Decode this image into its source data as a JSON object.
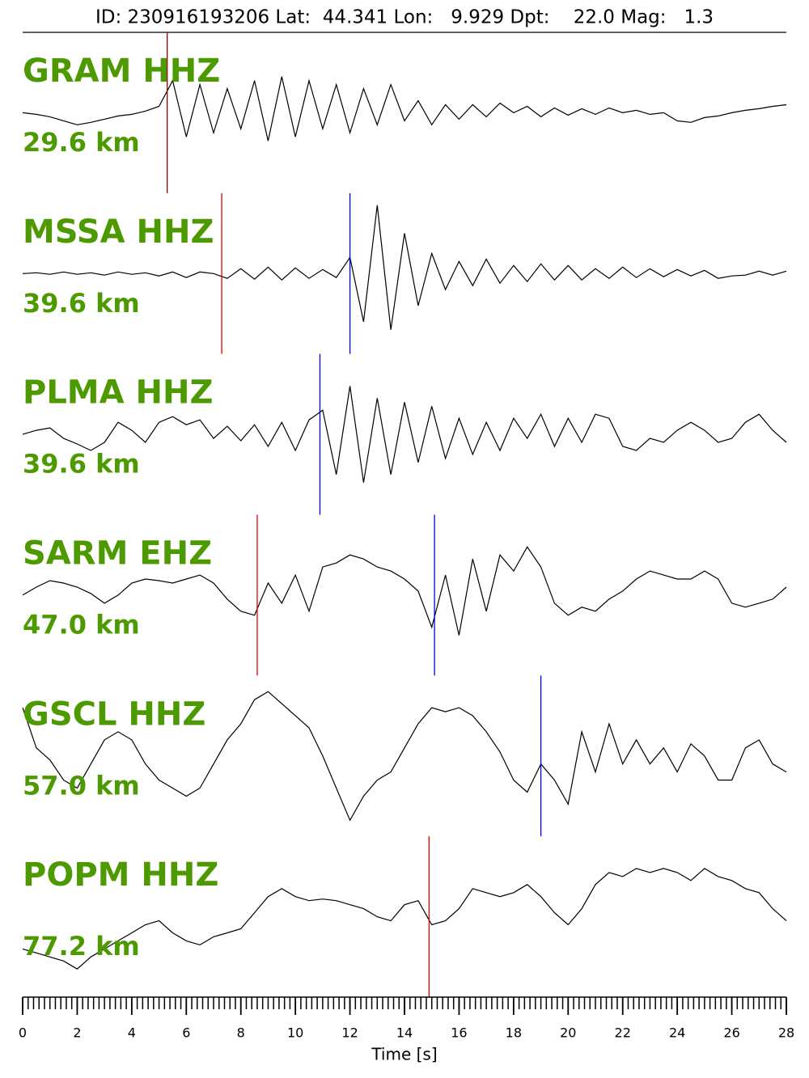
{
  "chart_data": {
    "type": "seismogram",
    "title": "ID: 230916193206 Lat:  44.341 Lon:   9.929 Dpt:    22.0 Mag:   1.3",
    "xlabel": "Time [s]",
    "xlim": [
      0,
      28
    ],
    "xticks": [
      0,
      2,
      4,
      6,
      8,
      10,
      12,
      14,
      16,
      18,
      20,
      22,
      24,
      26,
      28
    ],
    "xminor_step": 0.2,
    "ylim": [
      -100,
      100
    ],
    "label_color": "#4c9a00",
    "line_color": "#000000",
    "x": [
      0,
      0.5,
      1,
      1.5,
      2,
      2.5,
      3,
      3.5,
      4,
      4.5,
      5,
      5.5,
      6,
      6.5,
      7,
      7.5,
      8,
      8.5,
      9,
      9.5,
      10,
      10.5,
      11,
      11.5,
      12,
      12.5,
      13,
      13.5,
      14,
      14.5,
      15,
      15.5,
      16,
      16.5,
      17,
      17.5,
      18,
      18.5,
      19,
      19.5,
      20,
      20.5,
      21,
      21.5,
      22,
      22.5,
      23,
      23.5,
      24,
      24.5,
      25,
      25.5,
      26,
      26.5,
      27,
      27.5,
      28
    ],
    "traces": [
      {
        "station": "GRAM HHZ",
        "distance": "29.6 km",
        "values": [
          0,
          -2,
          -5,
          -10,
          -15,
          -12,
          -8,
          -4,
          -2,
          2,
          8,
          40,
          -30,
          35,
          -25,
          30,
          -20,
          40,
          -35,
          45,
          -30,
          40,
          -20,
          35,
          -25,
          30,
          -15,
          35,
          -10,
          15,
          -15,
          10,
          -8,
          10,
          -5,
          12,
          0,
          8,
          -5,
          6,
          -3,
          5,
          -2,
          6,
          0,
          3,
          -2,
          0,
          -10,
          -12,
          -6,
          -4,
          0,
          3,
          5,
          8,
          10
        ],
        "picks": [
          {
            "time": 5.3,
            "color": "#8b0000"
          }
        ]
      },
      {
        "station": "MSSA HHZ",
        "distance": "39.6 km",
        "values": [
          0,
          1,
          -1,
          2,
          -1,
          1,
          -2,
          2,
          -1,
          1,
          -3,
          2,
          -5,
          2,
          0,
          -6,
          6,
          -7,
          8,
          -8,
          7,
          -6,
          5,
          -5,
          20,
          -60,
          85,
          -70,
          50,
          -40,
          25,
          -20,
          15,
          -15,
          18,
          -12,
          10,
          -10,
          12,
          -8,
          10,
          -8,
          6,
          -6,
          8,
          -5,
          6,
          -4,
          5,
          -3,
          4,
          -6,
          -3,
          -2,
          3,
          -2,
          3
        ],
        "picks": [
          {
            "time": 7.3,
            "color": "#e00000"
          },
          {
            "time": 12.0,
            "color": "#0000e0"
          }
        ]
      },
      {
        "station": "PLMA HHZ",
        "distance": "39.6 km",
        "values": [
          0,
          5,
          8,
          -5,
          -12,
          -20,
          -10,
          15,
          5,
          -10,
          15,
          22,
          12,
          18,
          -5,
          10,
          -8,
          12,
          -15,
          15,
          -20,
          18,
          30,
          -50,
          60,
          -60,
          45,
          -50,
          40,
          -35,
          35,
          -30,
          20,
          -25,
          15,
          -20,
          20,
          -5,
          25,
          -15,
          20,
          -10,
          25,
          20,
          -15,
          -20,
          -5,
          -10,
          5,
          15,
          5,
          -10,
          -5,
          15,
          25,
          5,
          -10
        ],
        "picks": [
          {
            "time": 10.9,
            "color": "#0000e0"
          }
        ]
      },
      {
        "station": "SARM EHZ",
        "distance": "47.0 km",
        "values": [
          0,
          10,
          18,
          15,
          10,
          2,
          -10,
          0,
          15,
          20,
          18,
          15,
          20,
          25,
          15,
          -5,
          -20,
          -25,
          15,
          -10,
          25,
          -20,
          35,
          40,
          50,
          45,
          35,
          30,
          20,
          5,
          -40,
          25,
          -50,
          45,
          -20,
          50,
          30,
          60,
          35,
          -10,
          -25,
          -15,
          -20,
          -5,
          5,
          20,
          30,
          25,
          20,
          20,
          30,
          20,
          -10,
          -15,
          -10,
          -5,
          10
        ],
        "picks": [
          {
            "time": 8.6,
            "color": "#e00000"
          },
          {
            "time": 15.1,
            "color": "#0000e0"
          }
        ]
      },
      {
        "station": "GSCL HHZ",
        "distance": "57.0 km",
        "values": [
          60,
          10,
          -5,
          -30,
          -40,
          -10,
          20,
          30,
          20,
          -10,
          -30,
          -40,
          -50,
          -40,
          -10,
          20,
          40,
          70,
          80,
          65,
          50,
          35,
          0,
          -40,
          -80,
          -50,
          -30,
          -20,
          10,
          40,
          60,
          55,
          60,
          50,
          30,
          5,
          -30,
          -45,
          -10,
          -30,
          -60,
          30,
          -20,
          40,
          -10,
          20,
          -10,
          10,
          -20,
          15,
          0,
          -30,
          -30,
          10,
          20,
          -10,
          -20
        ],
        "picks": [
          {
            "time": 19.0,
            "color": "#0000e0"
          }
        ]
      },
      {
        "station": "POPM HHZ",
        "distance": "77.2 km",
        "values": [
          -40,
          -45,
          -50,
          -55,
          -65,
          -50,
          -40,
          -30,
          -20,
          -10,
          -5,
          -20,
          -30,
          -35,
          -25,
          -20,
          -15,
          5,
          25,
          35,
          25,
          20,
          22,
          20,
          15,
          10,
          0,
          -5,
          15,
          20,
          -10,
          -5,
          10,
          35,
          30,
          25,
          30,
          40,
          25,
          5,
          -10,
          10,
          40,
          55,
          50,
          60,
          55,
          60,
          55,
          45,
          60,
          50,
          45,
          35,
          30,
          10,
          -5
        ],
        "picks": [
          {
            "time": 14.9,
            "color": "#e00000"
          }
        ]
      }
    ]
  }
}
